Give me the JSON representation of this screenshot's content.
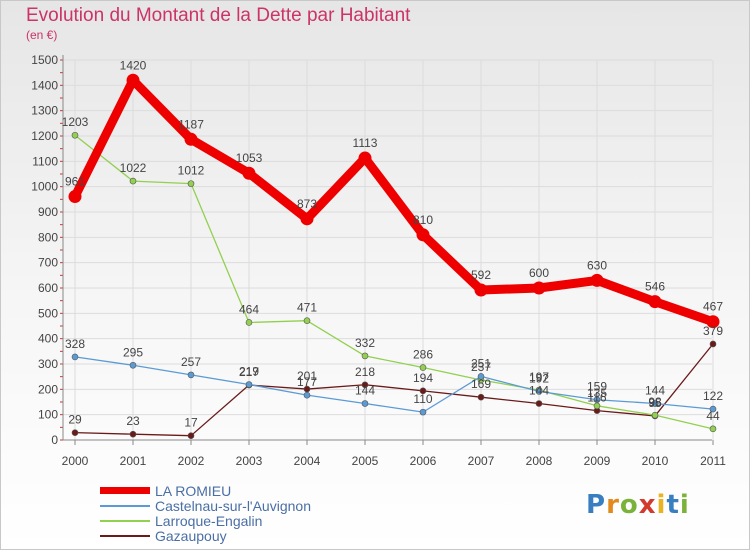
{
  "title": "Evolution du Montant de la Dette par Habitant",
  "unit": "(en €)",
  "brand": "Proxiti",
  "chart_data": {
    "type": "line",
    "title": "Evolution du Montant de la Dette par Habitant",
    "ylabel": "(en €)",
    "x": [
      "2000",
      "2001",
      "2002",
      "2003",
      "2004",
      "2005",
      "2006",
      "2007",
      "2008",
      "2009",
      "2010",
      "2011"
    ],
    "ylim": [
      0,
      1500
    ],
    "yticks": [
      0,
      100,
      200,
      300,
      400,
      500,
      600,
      700,
      800,
      900,
      1000,
      1100,
      1200,
      1300,
      1400,
      1500
    ],
    "grid": true,
    "legend_position": "bottom",
    "series": [
      {
        "name": "LA ROMIEU",
        "color": "#ee0000",
        "values": [
          961,
          1420,
          1187,
          1053,
          873,
          1113,
          810,
          592,
          600,
          630,
          546,
          467
        ]
      },
      {
        "name": "Castelnau-sur-l'Auvignon",
        "color": "#5b9bd5",
        "values": [
          328,
          295,
          257,
          219,
          177,
          144,
          110,
          251,
          192,
          159,
          144,
          122
        ]
      },
      {
        "name": "Larroque-Engalin",
        "color": "#92d050",
        "values": [
          1203,
          1022,
          1012,
          464,
          471,
          332,
          286,
          237,
          197,
          135,
          98,
          44
        ]
      },
      {
        "name": "Gazaupouy",
        "color": "#6b1a1a",
        "values": [
          29,
          23,
          17,
          217,
          201,
          218,
          194,
          169,
          144,
          116,
          95,
          379
        ]
      }
    ]
  }
}
